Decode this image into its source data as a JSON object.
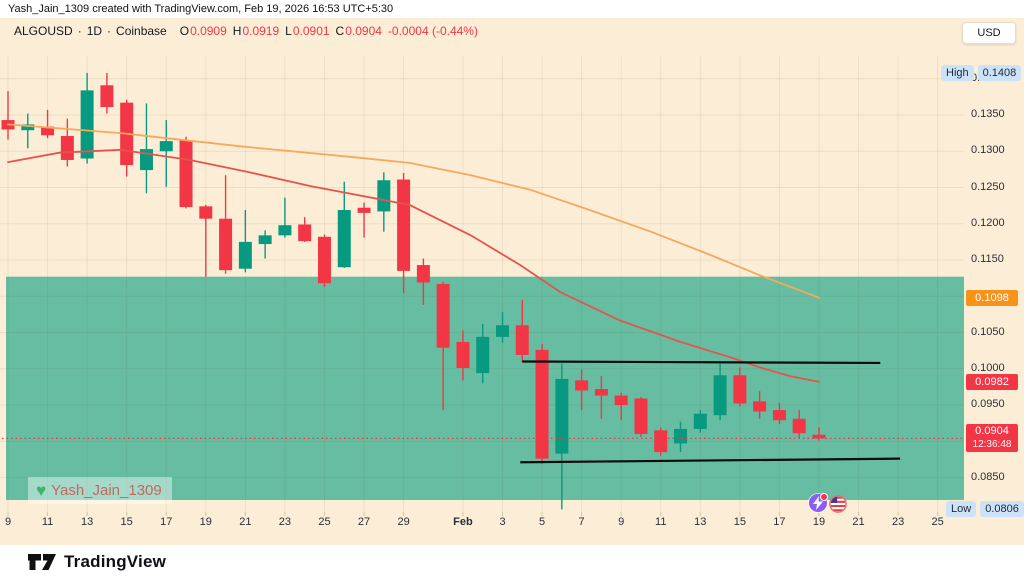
{
  "attribution": "Yash_Jain_1309 created with TradingView.com, Feb 19, 2026 16:53 UTC+5:30",
  "legend": {
    "symbol": "ALGOUSD",
    "separator": "·",
    "interval": "1D",
    "exchange": "Coinbase",
    "o_label": "O",
    "o": "0.0909",
    "h_label": "H",
    "h": "0.0919",
    "l_label": "L",
    "l": "0.0901",
    "c_label": "C",
    "c": "0.0904",
    "change": "-0.0004 (-0.44%)"
  },
  "price_axis": {
    "currency": "USD",
    "high_label": "High",
    "high_value": "0.1408",
    "low_label": "Low",
    "low_value": "0.0806",
    "ticks": [
      {
        "label": "0.1400",
        "price": 0.14
      },
      {
        "label": "0.1350",
        "price": 0.135
      },
      {
        "label": "0.1300",
        "price": 0.13
      },
      {
        "label": "0.1250",
        "price": 0.125
      },
      {
        "label": "0.1200",
        "price": 0.12
      },
      {
        "label": "0.1150",
        "price": 0.115
      },
      {
        "label": "0.1050",
        "price": 0.105
      },
      {
        "label": "0.1000",
        "price": 0.1
      },
      {
        "label": "0.0950",
        "price": 0.095
      },
      {
        "label": "0.0850",
        "price": 0.085
      }
    ],
    "ma_badges": [
      {
        "label": "0.1098",
        "price": 0.1098,
        "color": "#F7931A"
      },
      {
        "label": "0.0982",
        "price": 0.0982,
        "color": "#F23645"
      }
    ],
    "last_badge": {
      "label": "0.0904",
      "countdown": "12:36:48",
      "price": 0.0904,
      "color": "#F23645"
    }
  },
  "time_axis": {
    "labels": [
      {
        "label": "9",
        "day": 0
      },
      {
        "label": "11",
        "day": 2
      },
      {
        "label": "13",
        "day": 4
      },
      {
        "label": "15",
        "day": 6
      },
      {
        "label": "17",
        "day": 8
      },
      {
        "label": "19",
        "day": 10
      },
      {
        "label": "21",
        "day": 12
      },
      {
        "label": "23",
        "day": 14
      },
      {
        "label": "25",
        "day": 16
      },
      {
        "label": "27",
        "day": 18
      },
      {
        "label": "29",
        "day": 20
      },
      {
        "label": "Feb",
        "day": 23
      },
      {
        "label": "3",
        "day": 25
      },
      {
        "label": "5",
        "day": 27
      },
      {
        "label": "7",
        "day": 29
      },
      {
        "label": "9",
        "day": 31
      },
      {
        "label": "11",
        "day": 33
      },
      {
        "label": "13",
        "day": 35
      },
      {
        "label": "15",
        "day": 37
      },
      {
        "label": "17",
        "day": 39
      },
      {
        "label": "19",
        "day": 41
      },
      {
        "label": "21",
        "day": 43
      },
      {
        "label": "23",
        "day": 45
      },
      {
        "label": "25",
        "day": 47
      }
    ]
  },
  "watermark": {
    "heart": "♥",
    "name": "Yash_Jain_1309"
  },
  "footer": {
    "brand": "TradingView"
  },
  "colors": {
    "background": "#FCEED6",
    "bull": "#089981",
    "bear": "#F23645",
    "zone": "#66BDA2",
    "ma_slow": "#F6A85B",
    "ma_fast": "#E4544E",
    "trendline": "#0b0b0b",
    "grid": "rgba(110,85,40,0.10)"
  },
  "chart_data": {
    "type": "candlestick",
    "title": "ALGOUSD · 1D · Coinbase",
    "symbol": "ALGOUSD",
    "interval": "1D",
    "exchange": "Coinbase",
    "y_axis": {
      "min": 0.0795,
      "max": 0.143,
      "grid_step": 0.005,
      "grid_top": 0.14,
      "grid_bottom": 0.085
    },
    "period_high": 0.1408,
    "period_low": 0.0806,
    "current_price": 0.0904,
    "candles": [
      {
        "date": "Jan 9",
        "o": 0.1343,
        "h": 0.1383,
        "l": 0.1316,
        "c": 0.133
      },
      {
        "date": "Jan 10",
        "o": 0.1329,
        "h": 0.1352,
        "l": 0.1304,
        "c": 0.1337
      },
      {
        "date": "Jan 11",
        "o": 0.1334,
        "h": 0.1357,
        "l": 0.1318,
        "c": 0.1322
      },
      {
        "date": "Jan 12",
        "o": 0.1321,
        "h": 0.1345,
        "l": 0.1279,
        "c": 0.1288
      },
      {
        "date": "Jan 13",
        "o": 0.129,
        "h": 0.1408,
        "l": 0.1283,
        "c": 0.1384
      },
      {
        "date": "Jan 14",
        "o": 0.1391,
        "h": 0.1408,
        "l": 0.1352,
        "c": 0.1361
      },
      {
        "date": "Jan 15",
        "o": 0.1367,
        "h": 0.1371,
        "l": 0.1265,
        "c": 0.1281
      },
      {
        "date": "Jan 16",
        "o": 0.1274,
        "h": 0.1366,
        "l": 0.1242,
        "c": 0.1303
      },
      {
        "date": "Jan 17",
        "o": 0.13,
        "h": 0.1343,
        "l": 0.1251,
        "c": 0.1314
      },
      {
        "date": "Jan 18",
        "o": 0.1315,
        "h": 0.132,
        "l": 0.1221,
        "c": 0.1223
      },
      {
        "date": "Jan 19",
        "o": 0.1224,
        "h": 0.1226,
        "l": 0.1127,
        "c": 0.1207
      },
      {
        "date": "Jan 20",
        "o": 0.1207,
        "h": 0.1267,
        "l": 0.1131,
        "c": 0.1136
      },
      {
        "date": "Jan 21",
        "o": 0.1138,
        "h": 0.1219,
        "l": 0.1133,
        "c": 0.1175
      },
      {
        "date": "Jan 22",
        "o": 0.1172,
        "h": 0.1191,
        "l": 0.1152,
        "c": 0.1184
      },
      {
        "date": "Jan 23",
        "o": 0.1184,
        "h": 0.1236,
        "l": 0.1181,
        "c": 0.1198
      },
      {
        "date": "Jan 24",
        "o": 0.1199,
        "h": 0.1209,
        "l": 0.1175,
        "c": 0.1176
      },
      {
        "date": "Jan 25",
        "o": 0.1182,
        "h": 0.1185,
        "l": 0.1113,
        "c": 0.1118
      },
      {
        "date": "Jan 26",
        "o": 0.114,
        "h": 0.1258,
        "l": 0.1139,
        "c": 0.1219
      },
      {
        "date": "Jan 27",
        "o": 0.1222,
        "h": 0.1229,
        "l": 0.1181,
        "c": 0.1215
      },
      {
        "date": "Jan 28",
        "o": 0.1217,
        "h": 0.1271,
        "l": 0.1189,
        "c": 0.126
      },
      {
        "date": "Jan 29",
        "o": 0.1261,
        "h": 0.127,
        "l": 0.1104,
        "c": 0.1135
      },
      {
        "date": "Jan 30",
        "o": 0.1143,
        "h": 0.1152,
        "l": 0.1088,
        "c": 0.1119
      },
      {
        "date": "Jan 31",
        "o": 0.1117,
        "h": 0.112,
        "l": 0.0943,
        "c": 0.1029
      },
      {
        "date": "Feb 1",
        "o": 0.1037,
        "h": 0.1053,
        "l": 0.0984,
        "c": 0.1001
      },
      {
        "date": "Feb 2",
        "o": 0.0994,
        "h": 0.1062,
        "l": 0.098,
        "c": 0.1044
      },
      {
        "date": "Feb 3",
        "o": 0.1044,
        "h": 0.1078,
        "l": 0.1036,
        "c": 0.106
      },
      {
        "date": "Feb 4",
        "o": 0.106,
        "h": 0.1095,
        "l": 0.1009,
        "c": 0.1019
      },
      {
        "date": "Feb 5",
        "o": 0.1026,
        "h": 0.1034,
        "l": 0.0869,
        "c": 0.0876
      },
      {
        "date": "Feb 6",
        "o": 0.0883,
        "h": 0.1007,
        "l": 0.0806,
        "c": 0.0986
      },
      {
        "date": "Feb 7",
        "o": 0.0984,
        "h": 0.0999,
        "l": 0.0943,
        "c": 0.097
      },
      {
        "date": "Feb 8",
        "o": 0.0972,
        "h": 0.099,
        "l": 0.0931,
        "c": 0.0963
      },
      {
        "date": "Feb 9",
        "o": 0.0963,
        "h": 0.0967,
        "l": 0.0929,
        "c": 0.095
      },
      {
        "date": "Feb 10",
        "o": 0.0959,
        "h": 0.0961,
        "l": 0.0906,
        "c": 0.091
      },
      {
        "date": "Feb 11",
        "o": 0.0915,
        "h": 0.0919,
        "l": 0.088,
        "c": 0.0885
      },
      {
        "date": "Feb 12",
        "o": 0.0897,
        "h": 0.0927,
        "l": 0.0885,
        "c": 0.0917
      },
      {
        "date": "Feb 13",
        "o": 0.0917,
        "h": 0.0943,
        "l": 0.0912,
        "c": 0.0938
      },
      {
        "date": "Feb 14",
        "o": 0.0936,
        "h": 0.1007,
        "l": 0.0929,
        "c": 0.0991
      },
      {
        "date": "Feb 15",
        "o": 0.0991,
        "h": 0.1002,
        "l": 0.0948,
        "c": 0.0952
      },
      {
        "date": "Feb 16",
        "o": 0.0955,
        "h": 0.0969,
        "l": 0.0931,
        "c": 0.0941
      },
      {
        "date": "Feb 17",
        "o": 0.0943,
        "h": 0.0953,
        "l": 0.0924,
        "c": 0.0929
      },
      {
        "date": "Feb 18",
        "o": 0.0931,
        "h": 0.0943,
        "l": 0.0904,
        "c": 0.0911
      },
      {
        "date": "Feb 19",
        "o": 0.0909,
        "h": 0.0919,
        "l": 0.0901,
        "c": 0.0904
      }
    ],
    "ma_lines": [
      {
        "name": "ma-slow-orange",
        "color": "#F6A85B",
        "current_value": 0.1098,
        "points": [
          [
            0,
            0.1337
          ],
          [
            5.7,
            0.1325
          ],
          [
            11.7,
            0.1307
          ],
          [
            17.8,
            0.1291
          ],
          [
            20.3,
            0.1284
          ],
          [
            23.4,
            0.1267
          ],
          [
            26.4,
            0.1247
          ],
          [
            29.4,
            0.1219
          ],
          [
            32.5,
            0.1189
          ],
          [
            35.5,
            0.1157
          ],
          [
            38.0,
            0.1129
          ],
          [
            41,
            0.1098
          ]
        ]
      },
      {
        "name": "ma-fast-red",
        "color": "#E4544E",
        "current_value": 0.0982,
        "points": [
          [
            0,
            0.1285
          ],
          [
            2.6,
            0.1298
          ],
          [
            5.7,
            0.1302
          ],
          [
            9.2,
            0.1288
          ],
          [
            12.2,
            0.1271
          ],
          [
            15.3,
            0.1252
          ],
          [
            20.3,
            0.1226
          ],
          [
            23.4,
            0.1184
          ],
          [
            25.9,
            0.1143
          ],
          [
            27.9,
            0.1106
          ],
          [
            30.9,
            0.1067
          ],
          [
            34.0,
            0.1037
          ],
          [
            36.5,
            0.1016
          ],
          [
            38.0,
            0.1002
          ],
          [
            39.5,
            0.099
          ],
          [
            41,
            0.0982
          ]
        ]
      }
    ],
    "trendlines": [
      {
        "name": "resistance-line",
        "d1": 26.0,
        "p1": 0.101,
        "d2": 44.1,
        "p2": 0.1008
      },
      {
        "name": "support-line",
        "d1": 25.9,
        "p1": 0.0871,
        "d2": 45.1,
        "p2": 0.0876
      }
    ],
    "zone": {
      "top_price": 0.1127,
      "bottom_price": 0.0819
    }
  }
}
